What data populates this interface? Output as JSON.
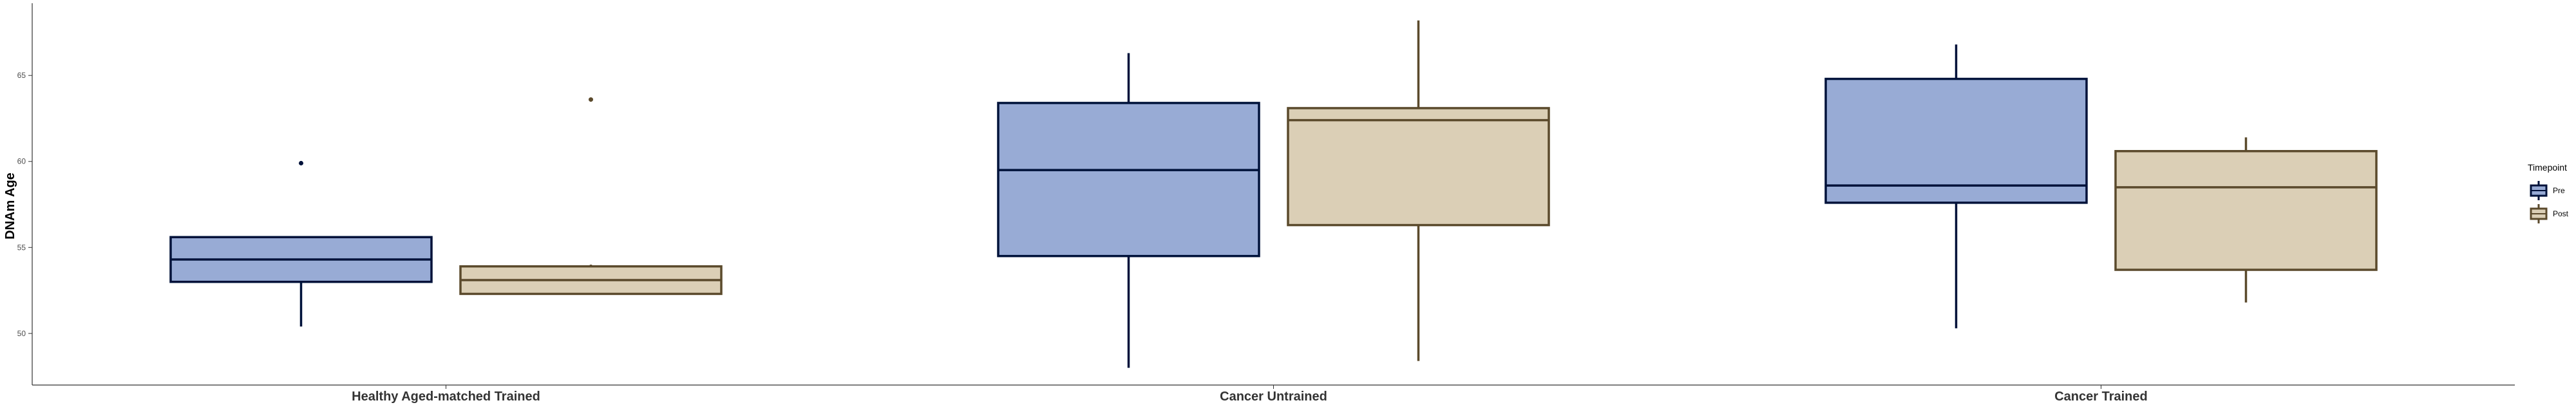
{
  "chart_data": {
    "type": "boxplot",
    "ylabel": "DNAm Age",
    "xlabel": "",
    "ylim": [
      47.0,
      69.2
    ],
    "yticks": [
      50,
      55,
      60,
      65
    ],
    "grid": false,
    "legend_position": "right",
    "legend_title": "Timepoint",
    "categories": [
      "Healthy Aged-matched Trained",
      "Cancer Untrained",
      "Cancer Trained"
    ],
    "series": [
      {
        "name": "Pre",
        "fill": "#98abd5",
        "stroke": "#00123a",
        "boxes": [
          {
            "min": 50.4,
            "q1": 53.0,
            "median": 54.3,
            "q3": 55.6,
            "max": 55.6,
            "outliers": [
              59.9
            ]
          },
          {
            "min": 48.0,
            "q1": 54.5,
            "median": 59.5,
            "q3": 63.4,
            "max": 66.3,
            "outliers": []
          },
          {
            "min": 50.3,
            "q1": 57.6,
            "median": 58.6,
            "q3": 64.8,
            "max": 66.8,
            "outliers": []
          }
        ]
      },
      {
        "name": "Post",
        "fill": "#dbcfb6",
        "stroke": "#5b4a2c",
        "boxes": [
          {
            "min": 52.3,
            "q1": 52.3,
            "median": 53.1,
            "q3": 53.9,
            "max": 54.0,
            "outliers": [
              63.6
            ]
          },
          {
            "min": 48.4,
            "q1": 56.3,
            "median": 62.4,
            "q3": 63.1,
            "max": 68.2,
            "outliers": []
          },
          {
            "min": 51.8,
            "q1": 53.7,
            "median": 58.5,
            "q3": 60.6,
            "max": 61.4,
            "outliers": []
          }
        ]
      }
    ]
  }
}
